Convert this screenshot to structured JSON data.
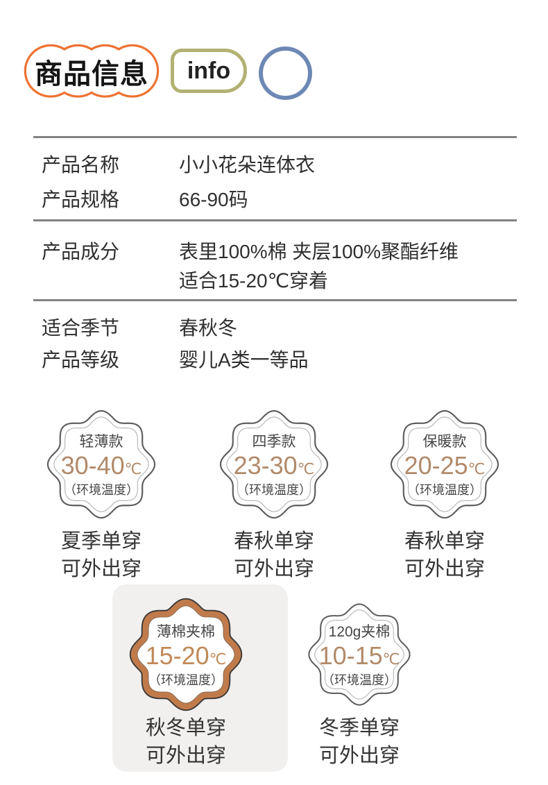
{
  "header": {
    "title": "商品信息",
    "info_label": "info",
    "colors": {
      "cloud_border": "#ee7231",
      "info_border": "#b2b173",
      "circle_border": "#6d88b4"
    }
  },
  "spec_table": {
    "rows": [
      {
        "label": "产品名称",
        "value": "小小花朵连体衣"
      },
      {
        "label": "产品规格",
        "value": "66-90码"
      },
      {
        "label": "产品成分",
        "value": "表里100%棉 夹层100%聚酯纤维",
        "value_line2": "适合15-20℃穿着"
      },
      {
        "label": "适合季节",
        "value": "春秋冬"
      },
      {
        "label": "产品等级",
        "value": "婴儿A类一等品"
      }
    ]
  },
  "badges": [
    {
      "name": "轻薄款",
      "temp": "30-40",
      "unit": "℃",
      "note": "（环境温度）",
      "caption_line1": "夏季单穿",
      "caption_line2": "可外出穿",
      "highlighted": false
    },
    {
      "name": "四季款",
      "temp": "23-30",
      "unit": "℃",
      "note": "（环境温度）",
      "caption_line1": "春秋单穿",
      "caption_line2": "可外出穿",
      "highlighted": false
    },
    {
      "name": "保暖款",
      "temp": "20-25",
      "unit": "℃",
      "note": "（环境温度）",
      "caption_line1": "春秋单穿",
      "caption_line2": "可外出穿",
      "highlighted": false
    },
    {
      "name": "薄棉夹棉",
      "temp": "15-20",
      "unit": "℃",
      "note": "（环境温度）",
      "caption_line1": "秋冬单穿",
      "caption_line2": "可外出穿",
      "highlighted": true
    },
    {
      "name": "120g夹棉",
      "temp": "10-15",
      "unit": "℃",
      "note": "（环境温度）",
      "caption_line1": "冬季单穿",
      "caption_line2": "可外出穿",
      "highlighted": false
    }
  ],
  "colors": {
    "temp_text": "#b18a6a",
    "temp_text_highlight": "#c08a58",
    "flower_outline": "#5d5d5d",
    "flower_inner_ring": "#b5b5b5",
    "highlight_band": "#c17b4b",
    "highlight_outline": "#3e3b39",
    "highlight_card_bg": "#f1f0ef",
    "divider": "#828282",
    "text_primary": "#2f2f2f"
  }
}
